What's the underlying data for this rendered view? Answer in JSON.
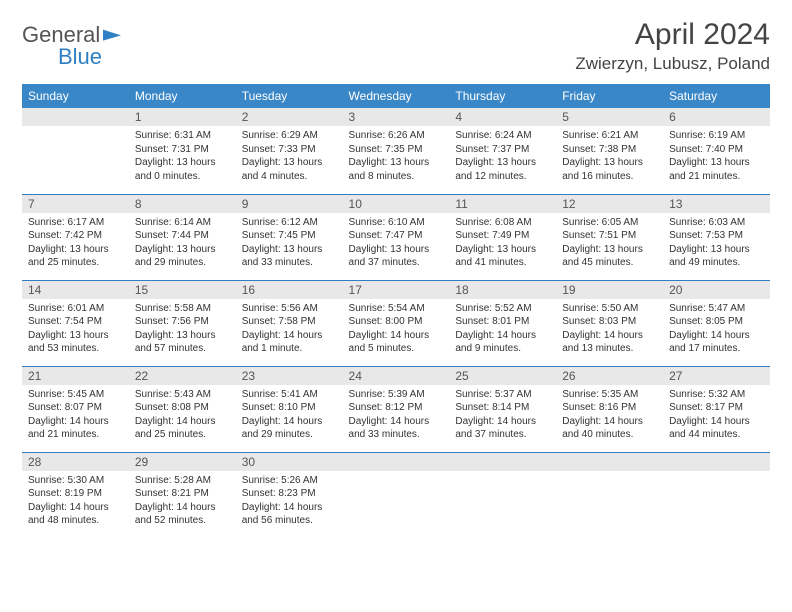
{
  "logo": {
    "word1": "General",
    "word2": "Blue"
  },
  "title": {
    "month": "April 2024",
    "location": "Zwierzyn, Lubusz, Poland"
  },
  "day_headers": [
    "Sunday",
    "Monday",
    "Tuesday",
    "Wednesday",
    "Thursday",
    "Friday",
    "Saturday"
  ],
  "colors": {
    "header_bg": "#3a87c8",
    "border": "#2f7fc2",
    "day_bar": "#e8e8e8"
  },
  "weeks": [
    [
      {
        "blank": true
      },
      {
        "n": "1",
        "sr": "Sunrise: 6:31 AM",
        "ss": "Sunset: 7:31 PM",
        "d1": "Daylight: 13 hours",
        "d2": "and 0 minutes."
      },
      {
        "n": "2",
        "sr": "Sunrise: 6:29 AM",
        "ss": "Sunset: 7:33 PM",
        "d1": "Daylight: 13 hours",
        "d2": "and 4 minutes."
      },
      {
        "n": "3",
        "sr": "Sunrise: 6:26 AM",
        "ss": "Sunset: 7:35 PM",
        "d1": "Daylight: 13 hours",
        "d2": "and 8 minutes."
      },
      {
        "n": "4",
        "sr": "Sunrise: 6:24 AM",
        "ss": "Sunset: 7:37 PM",
        "d1": "Daylight: 13 hours",
        "d2": "and 12 minutes."
      },
      {
        "n": "5",
        "sr": "Sunrise: 6:21 AM",
        "ss": "Sunset: 7:38 PM",
        "d1": "Daylight: 13 hours",
        "d2": "and 16 minutes."
      },
      {
        "n": "6",
        "sr": "Sunrise: 6:19 AM",
        "ss": "Sunset: 7:40 PM",
        "d1": "Daylight: 13 hours",
        "d2": "and 21 minutes."
      }
    ],
    [
      {
        "n": "7",
        "sr": "Sunrise: 6:17 AM",
        "ss": "Sunset: 7:42 PM",
        "d1": "Daylight: 13 hours",
        "d2": "and 25 minutes."
      },
      {
        "n": "8",
        "sr": "Sunrise: 6:14 AM",
        "ss": "Sunset: 7:44 PM",
        "d1": "Daylight: 13 hours",
        "d2": "and 29 minutes."
      },
      {
        "n": "9",
        "sr": "Sunrise: 6:12 AM",
        "ss": "Sunset: 7:45 PM",
        "d1": "Daylight: 13 hours",
        "d2": "and 33 minutes."
      },
      {
        "n": "10",
        "sr": "Sunrise: 6:10 AM",
        "ss": "Sunset: 7:47 PM",
        "d1": "Daylight: 13 hours",
        "d2": "and 37 minutes."
      },
      {
        "n": "11",
        "sr": "Sunrise: 6:08 AM",
        "ss": "Sunset: 7:49 PM",
        "d1": "Daylight: 13 hours",
        "d2": "and 41 minutes."
      },
      {
        "n": "12",
        "sr": "Sunrise: 6:05 AM",
        "ss": "Sunset: 7:51 PM",
        "d1": "Daylight: 13 hours",
        "d2": "and 45 minutes."
      },
      {
        "n": "13",
        "sr": "Sunrise: 6:03 AM",
        "ss": "Sunset: 7:53 PM",
        "d1": "Daylight: 13 hours",
        "d2": "and 49 minutes."
      }
    ],
    [
      {
        "n": "14",
        "sr": "Sunrise: 6:01 AM",
        "ss": "Sunset: 7:54 PM",
        "d1": "Daylight: 13 hours",
        "d2": "and 53 minutes."
      },
      {
        "n": "15",
        "sr": "Sunrise: 5:58 AM",
        "ss": "Sunset: 7:56 PM",
        "d1": "Daylight: 13 hours",
        "d2": "and 57 minutes."
      },
      {
        "n": "16",
        "sr": "Sunrise: 5:56 AM",
        "ss": "Sunset: 7:58 PM",
        "d1": "Daylight: 14 hours",
        "d2": "and 1 minute."
      },
      {
        "n": "17",
        "sr": "Sunrise: 5:54 AM",
        "ss": "Sunset: 8:00 PM",
        "d1": "Daylight: 14 hours",
        "d2": "and 5 minutes."
      },
      {
        "n": "18",
        "sr": "Sunrise: 5:52 AM",
        "ss": "Sunset: 8:01 PM",
        "d1": "Daylight: 14 hours",
        "d2": "and 9 minutes."
      },
      {
        "n": "19",
        "sr": "Sunrise: 5:50 AM",
        "ss": "Sunset: 8:03 PM",
        "d1": "Daylight: 14 hours",
        "d2": "and 13 minutes."
      },
      {
        "n": "20",
        "sr": "Sunrise: 5:47 AM",
        "ss": "Sunset: 8:05 PM",
        "d1": "Daylight: 14 hours",
        "d2": "and 17 minutes."
      }
    ],
    [
      {
        "n": "21",
        "sr": "Sunrise: 5:45 AM",
        "ss": "Sunset: 8:07 PM",
        "d1": "Daylight: 14 hours",
        "d2": "and 21 minutes."
      },
      {
        "n": "22",
        "sr": "Sunrise: 5:43 AM",
        "ss": "Sunset: 8:08 PM",
        "d1": "Daylight: 14 hours",
        "d2": "and 25 minutes."
      },
      {
        "n": "23",
        "sr": "Sunrise: 5:41 AM",
        "ss": "Sunset: 8:10 PM",
        "d1": "Daylight: 14 hours",
        "d2": "and 29 minutes."
      },
      {
        "n": "24",
        "sr": "Sunrise: 5:39 AM",
        "ss": "Sunset: 8:12 PM",
        "d1": "Daylight: 14 hours",
        "d2": "and 33 minutes."
      },
      {
        "n": "25",
        "sr": "Sunrise: 5:37 AM",
        "ss": "Sunset: 8:14 PM",
        "d1": "Daylight: 14 hours",
        "d2": "and 37 minutes."
      },
      {
        "n": "26",
        "sr": "Sunrise: 5:35 AM",
        "ss": "Sunset: 8:16 PM",
        "d1": "Daylight: 14 hours",
        "d2": "and 40 minutes."
      },
      {
        "n": "27",
        "sr": "Sunrise: 5:32 AM",
        "ss": "Sunset: 8:17 PM",
        "d1": "Daylight: 14 hours",
        "d2": "and 44 minutes."
      }
    ],
    [
      {
        "n": "28",
        "sr": "Sunrise: 5:30 AM",
        "ss": "Sunset: 8:19 PM",
        "d1": "Daylight: 14 hours",
        "d2": "and 48 minutes."
      },
      {
        "n": "29",
        "sr": "Sunrise: 5:28 AM",
        "ss": "Sunset: 8:21 PM",
        "d1": "Daylight: 14 hours",
        "d2": "and 52 minutes."
      },
      {
        "n": "30",
        "sr": "Sunrise: 5:26 AM",
        "ss": "Sunset: 8:23 PM",
        "d1": "Daylight: 14 hours",
        "d2": "and 56 minutes."
      },
      {
        "blank": true
      },
      {
        "blank": true
      },
      {
        "blank": true
      },
      {
        "blank": true
      }
    ]
  ]
}
